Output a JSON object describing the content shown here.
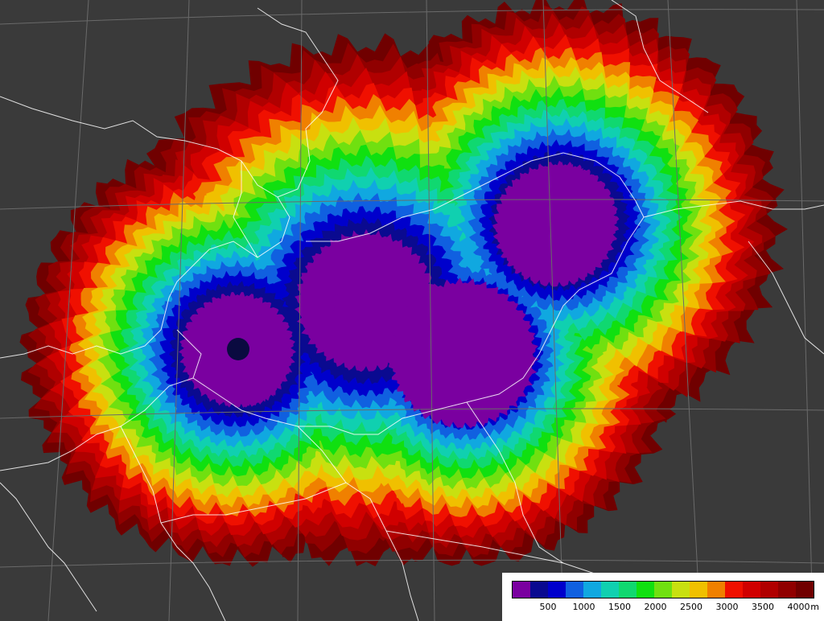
{
  "map": {
    "background": "#3a3a3a",
    "graticule_color": "#6a6a6a",
    "border_color": "#ffffff",
    "radars": [
      {
        "name_icon": "radar-site-west"
      },
      {
        "name_icon": "radar-site-center"
      },
      {
        "name_icon": "radar-site-east"
      },
      {
        "name_icon": "radar-site-north"
      }
    ]
  },
  "legend": {
    "colors": [
      "#7a00a0",
      "#0a0a90",
      "#0000cc",
      "#1060e0",
      "#10a8e0",
      "#10d0b0",
      "#10d870",
      "#10e010",
      "#70e010",
      "#c8e010",
      "#f0c000",
      "#f08000",
      "#f01000",
      "#d00000",
      "#b00000",
      "#900000",
      "#700000"
    ],
    "tick_labels": [
      "500",
      "1000",
      "1500",
      "2000",
      "2500",
      "3000",
      "3500",
      "4000"
    ],
    "unit": "m"
  }
}
